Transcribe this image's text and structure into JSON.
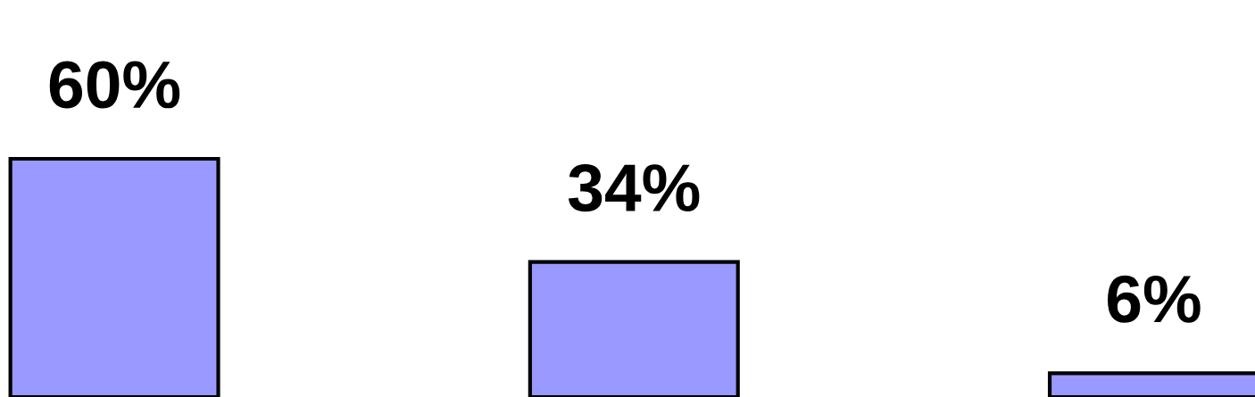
{
  "chart_data": {
    "type": "bar",
    "categories": [
      null,
      null,
      null
    ],
    "values": [
      60,
      34,
      6
    ],
    "value_labels": [
      "60%",
      "34%",
      "6%"
    ],
    "color": "#9999ff",
    "ylim": [
      0,
      100
    ],
    "grid": false,
    "legend": false
  }
}
